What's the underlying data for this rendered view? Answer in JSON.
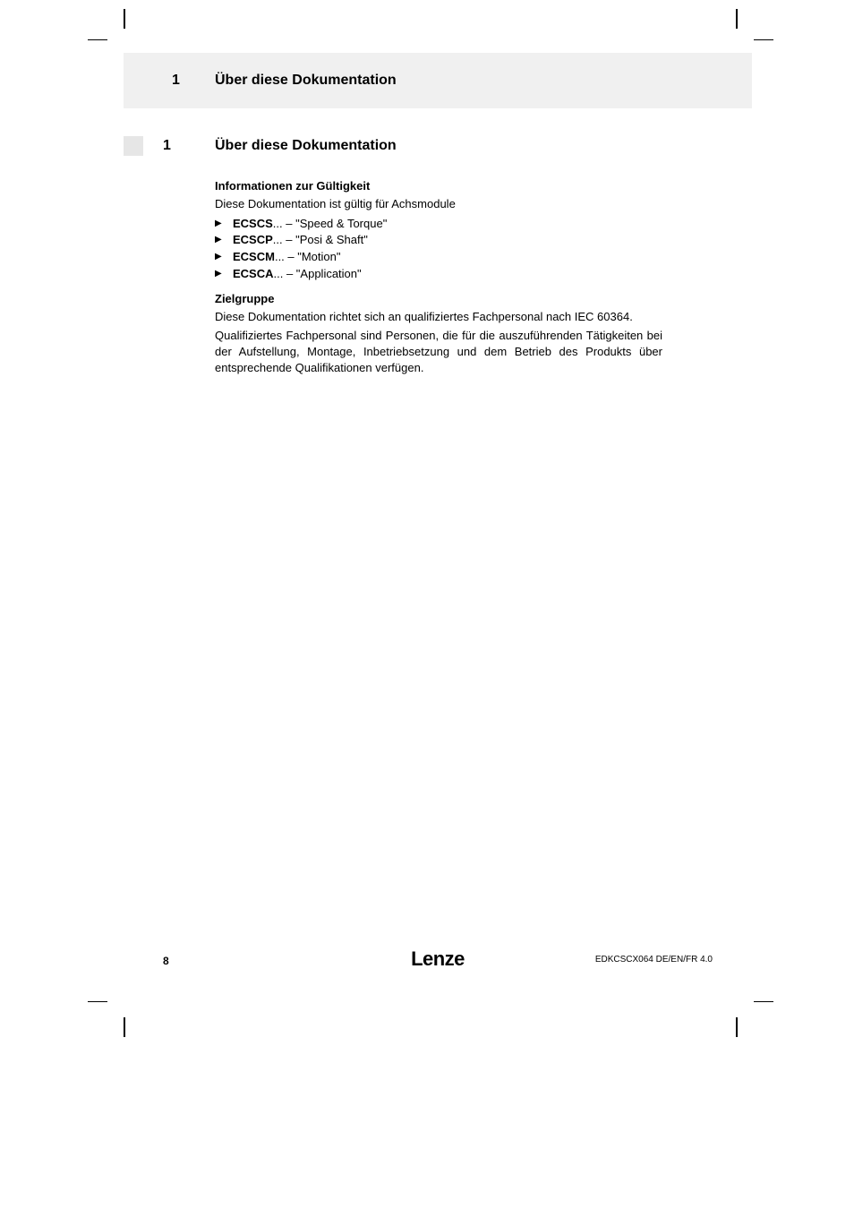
{
  "header": {
    "number": "1",
    "title": "Über diese Dokumentation"
  },
  "section": {
    "number": "1",
    "title": "Über diese Dokumentation"
  },
  "validity": {
    "heading": "Informationen zur Gültigkeit",
    "intro": "Diese Dokumentation ist gültig für Achsmodule",
    "items": [
      {
        "code": "ECSCS",
        "suffix": "... – \"Speed & Torque\""
      },
      {
        "code": "ECSCP",
        "suffix": "... – \"Posi & Shaft\""
      },
      {
        "code": "ECSCM",
        "suffix": "... – \"Motion\""
      },
      {
        "code": "ECSCA",
        "suffix": "... – \"Application\""
      }
    ]
  },
  "audience": {
    "heading": "Zielgruppe",
    "p1": "Diese Dokumentation richtet sich an qualifiziertes Fachpersonal nach IEC 60364.",
    "p2": "Qualifiziertes Fachpersonal sind Personen, die für die auszuführenden Tätigkeiten bei der Aufstellung, Montage, Inbetriebsetzung und dem Betrieb des Produkts über entsprechende Qualifikationen verfügen."
  },
  "footer": {
    "page": "8",
    "logo": "Lenze",
    "doc": "EDKCSCX064  DE/EN/FR  4.0"
  },
  "bullet_glyph": "▶"
}
